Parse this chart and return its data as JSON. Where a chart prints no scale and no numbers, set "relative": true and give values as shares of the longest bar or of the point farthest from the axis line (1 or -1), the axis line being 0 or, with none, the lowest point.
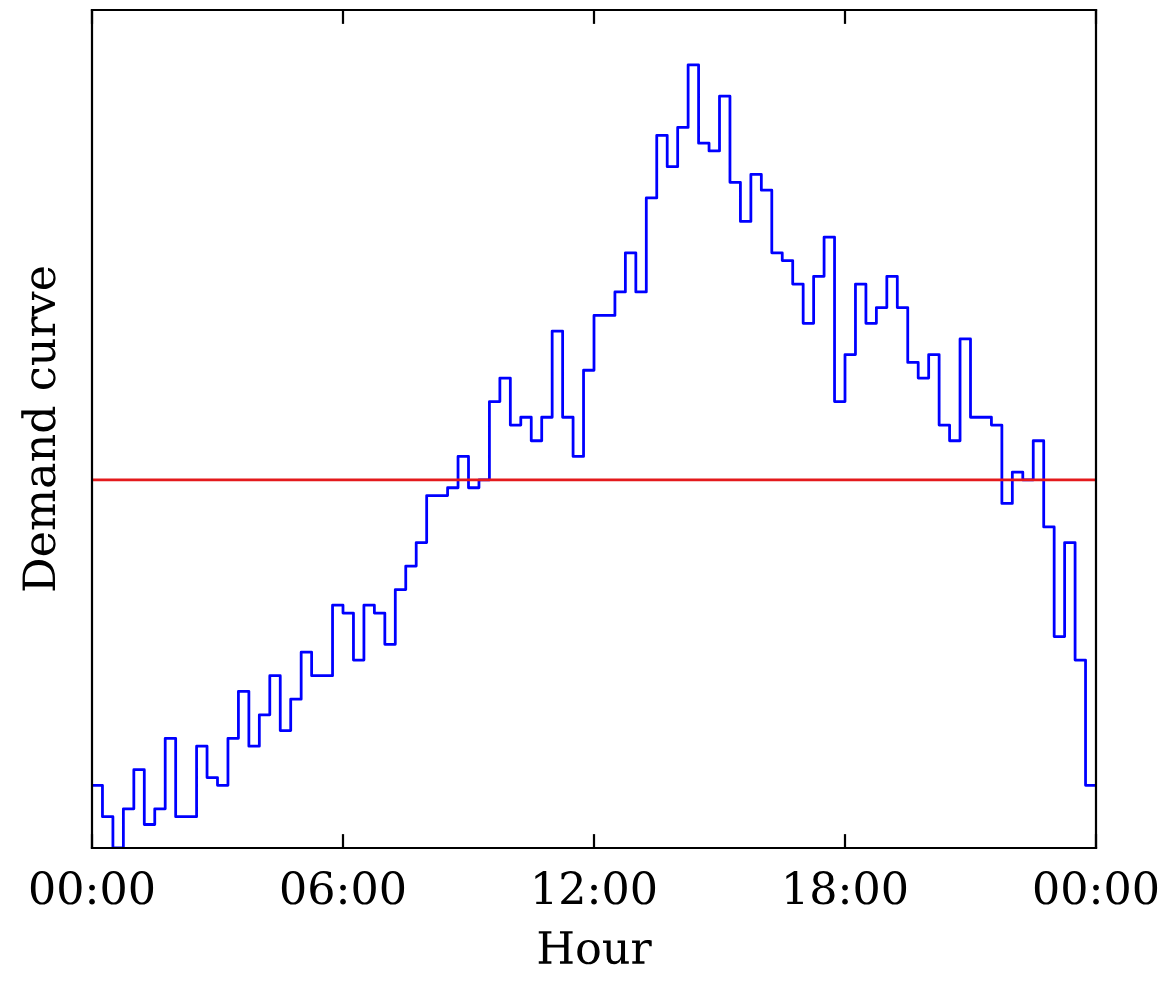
{
  "chart_data": {
    "type": "step",
    "xlabel": "Hour",
    "ylabel": "Demand curve",
    "relative": true,
    "x": [
      0,
      0.25,
      0.5,
      0.75,
      1,
      1.25,
      1.5,
      1.75,
      2,
      2.25,
      2.5,
      2.75,
      3,
      3.25,
      3.5,
      3.75,
      4,
      4.25,
      4.5,
      4.75,
      5,
      5.25,
      5.5,
      5.75,
      6,
      6.25,
      6.5,
      6.75,
      7,
      7.25,
      7.5,
      7.75,
      8,
      8.25,
      8.5,
      8.75,
      9,
      9.25,
      9.5,
      9.75,
      10,
      10.25,
      10.5,
      10.75,
      11,
      11.25,
      11.5,
      11.75,
      12,
      12.25,
      12.5,
      12.75,
      13,
      13.25,
      13.5,
      13.75,
      14,
      14.25,
      14.5,
      14.75,
      15,
      15.25,
      15.5,
      15.75,
      16,
      16.25,
      16.5,
      16.75,
      17,
      17.25,
      17.5,
      17.75,
      18,
      18.25,
      18.5,
      18.75,
      19,
      19.25,
      19.5,
      19.75,
      20,
      20.25,
      20.5,
      20.75,
      21,
      21.25,
      21.5,
      21.75,
      22,
      22.25,
      22.5,
      22.75,
      23,
      23.25,
      23.5,
      23.75,
      24
    ],
    "series": [
      {
        "color": "#0000ff",
        "values": [
          0.08,
          0.04,
          0,
          0.05,
          0.1,
          0.03,
          0.05,
          0.14,
          0.04,
          0.04,
          0.13,
          0.09,
          0.08,
          0.14,
          0.2,
          0.13,
          0.17,
          0.22,
          0.15,
          0.19,
          0.25,
          0.22,
          0.22,
          0.31,
          0.3,
          0.24,
          0.31,
          0.3,
          0.26,
          0.33,
          0.36,
          0.39,
          0.45,
          0.45,
          0.46,
          0.5,
          0.46,
          0.47,
          0.57,
          0.6,
          0.54,
          0.55,
          0.52,
          0.55,
          0.66,
          0.55,
          0.5,
          0.61,
          0.68,
          0.68,
          0.71,
          0.76,
          0.71,
          0.83,
          0.91,
          0.87,
          0.92,
          1,
          0.9,
          0.89,
          0.96,
          0.85,
          0.8,
          0.86,
          0.84,
          0.76,
          0.75,
          0.72,
          0.67,
          0.73,
          0.78,
          0.57,
          0.63,
          0.72,
          0.67,
          0.69,
          0.73,
          0.69,
          0.62,
          0.6,
          0.63,
          0.54,
          0.52,
          0.65,
          0.55,
          0.55,
          0.54,
          0.44,
          0.48,
          0.47,
          0.52,
          0.41,
          0.27,
          0.39,
          0.24,
          0.08,
          0.08
        ]
      }
    ],
    "xlim": [
      0,
      24
    ],
    "xticks": [
      {
        "value": 0,
        "label": "00:00"
      },
      {
        "value": 6,
        "label": "06:00"
      },
      {
        "value": 12,
        "label": "12:00"
      },
      {
        "value": 18,
        "label": "18:00"
      },
      {
        "value": 24,
        "label": "00:00"
      }
    ],
    "ref_lines": [
      {
        "axis": "y",
        "value": 0.47,
        "color": "#e41a1c"
      }
    ],
    "tick_labels": "x",
    "grid": false,
    "legend": false
  }
}
